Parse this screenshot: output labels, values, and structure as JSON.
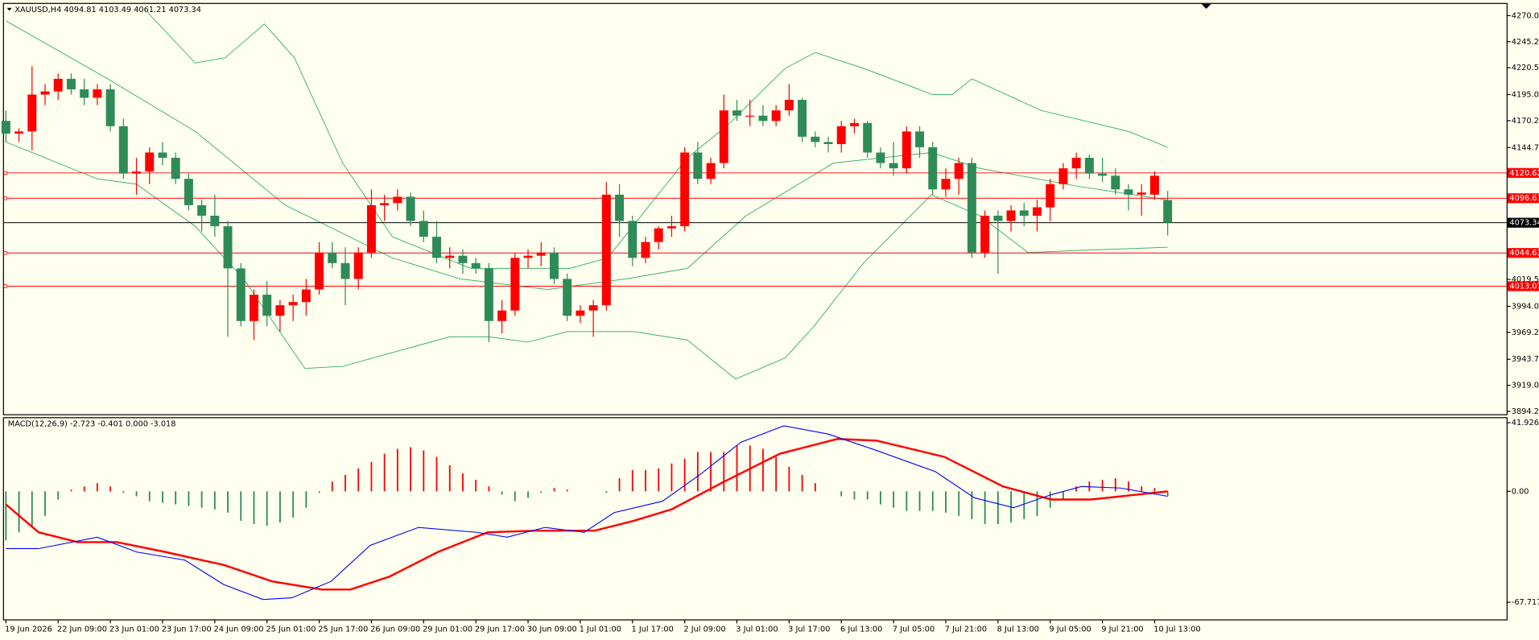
{
  "chart_data": {
    "type": "candlestick",
    "title": "XAUUSD,H4  4094.81 4103.49 4061.21 4073.34",
    "categories": [
      "19 Jun 2026",
      null,
      null,
      null,
      "22 Jun 09:00",
      null,
      null,
      null,
      "23 Jun 01:00",
      null,
      null,
      null,
      "23 Jun 17:00",
      null,
      null,
      null,
      "24 Jun 09:00",
      null,
      null,
      null,
      "25 Jun 01:00",
      null,
      null,
      null,
      "25 Jun 17:00",
      null,
      null,
      null,
      "26 Jun 09:00",
      null,
      null,
      null,
      "29 Jun 01:00",
      null,
      null,
      null,
      "29 Jun 17:00",
      null,
      null,
      null,
      "30 Jun 09:00",
      null,
      null,
      null,
      "1 Jul 01:00",
      null,
      null,
      null,
      "1 Jul 17:00",
      null,
      null,
      null,
      "2 Jul 09:00",
      null,
      null,
      null,
      "3 Jul 01:00",
      null,
      null,
      null,
      "3 Jul 17:00",
      null,
      null,
      null,
      "6 Jul 13:00",
      null,
      null,
      null,
      "7 Jul 05:00",
      null,
      null,
      null,
      "7 Jul 21:00",
      null,
      null,
      null,
      "8 Jul 13:00",
      null,
      null,
      null,
      "9 Jul 05:00",
      null,
      null,
      null,
      "9 Jul 21:00",
      null,
      null,
      null,
      "10 Jul 13:00",
      null
    ],
    "open": [
      4170,
      4158,
      4160,
      4195,
      4198,
      4210,
      4200,
      4192,
      4200,
      4165,
      4120,
      4122,
      4140,
      4135,
      4115,
      4090,
      4080,
      4070,
      4030,
      3980,
      4005,
      3985,
      3995,
      3998,
      4010,
      4045,
      4035,
      4020,
      4045,
      4090,
      4092,
      4098,
      4075,
      4060,
      4040,
      4042,
      4035,
      4030,
      3980,
      3990,
      4040,
      4042,
      4045,
      4020,
      3985,
      3990,
      3995,
      4100,
      4075,
      4040,
      4055,
      4068,
      4070,
      4140,
      4115,
      4130,
      4180,
      4175,
      4175,
      4170,
      4180,
      4190,
      4155,
      4150,
      4148,
      4165,
      4168,
      4140,
      4130,
      4125,
      4160,
      4145,
      4105,
      4115,
      4130,
      4045,
      4080,
      4075,
      4085,
      4080,
      4088,
      4110,
      4125,
      4135,
      4120,
      4118,
      4105,
      4100,
      4100,
      4094.81
    ],
    "high": [
      4180,
      4163,
      4222,
      4205,
      4215,
      4215,
      4210,
      4205,
      4205,
      4172,
      4135,
      4145,
      4150,
      4140,
      4120,
      4095,
      4100,
      4075,
      4035,
      4010,
      4018,
      4000,
      4005,
      4020,
      4055,
      4055,
      4050,
      4050,
      4105,
      4100,
      4105,
      4102,
      4085,
      4075,
      4050,
      4048,
      4040,
      4035,
      4000,
      4045,
      4048,
      4055,
      4050,
      4025,
      3995,
      4000,
      4112,
      4110,
      4080,
      4060,
      4070,
      4080,
      4145,
      4150,
      4135,
      4195,
      4190,
      4190,
      4185,
      4185,
      4205,
      4192,
      4160,
      4155,
      4170,
      4172,
      4170,
      4145,
      4150,
      4165,
      4165,
      4150,
      4125,
      4135,
      4135,
      4085,
      4085,
      4090,
      4092,
      4095,
      4115,
      4130,
      4140,
      4138,
      4135,
      4125,
      4110,
      4110,
      4122,
      4103.49
    ],
    "low": [
      4150,
      4150,
      4142,
      4185,
      4190,
      4195,
      4185,
      4185,
      4160,
      4115,
      4100,
      4110,
      4128,
      4110,
      4085,
      4065,
      4060,
      3965,
      3975,
      3962,
      3975,
      3970,
      3980,
      3985,
      4005,
      4030,
      3995,
      4010,
      4040,
      4075,
      4085,
      4070,
      4055,
      4035,
      4030,
      4025,
      4025,
      3960,
      3968,
      3985,
      4030,
      4032,
      4015,
      3980,
      3978,
      3965,
      3990,
      4060,
      4032,
      4035,
      4048,
      4060,
      4065,
      4110,
      4110,
      4125,
      4170,
      4165,
      4165,
      4165,
      4175,
      4150,
      4145,
      4140,
      4140,
      4158,
      4135,
      4125,
      4118,
      4120,
      4135,
      4100,
      4098,
      4100,
      4040,
      4040,
      4025,
      4065,
      4070,
      4065,
      4075,
      4105,
      4115,
      4115,
      4112,
      4100,
      4085,
      4080,
      4095,
      4061.21
    ],
    "close": [
      4158,
      4160,
      4195,
      4198,
      4210,
      4200,
      4192,
      4200,
      4165,
      4120,
      4122,
      4140,
      4135,
      4115,
      4090,
      4080,
      4070,
      4030,
      3980,
      4005,
      3985,
      3995,
      3998,
      4010,
      4045,
      4035,
      4020,
      4045,
      4090,
      4092,
      4098,
      4075,
      4060,
      4040,
      4042,
      4035,
      4030,
      3980,
      3990,
      4040,
      4042,
      4045,
      4020,
      3985,
      3990,
      3995,
      4100,
      4075,
      4040,
      4055,
      4068,
      4070,
      4140,
      4115,
      4130,
      4180,
      4175,
      4175,
      4170,
      4180,
      4190,
      4155,
      4150,
      4148,
      4165,
      4168,
      4140,
      4130,
      4125,
      4160,
      4145,
      4105,
      4115,
      4130,
      4045,
      4080,
      4075,
      4085,
      4080,
      4088,
      4110,
      4125,
      4135,
      4120,
      4118,
      4105,
      4100,
      4102,
      4118,
      4073.34
    ],
    "up_color": "#ff0000",
    "down_color": "#2e8b57",
    "ylim": [
      3891.5,
      4281.1
    ],
    "yticks": [
      {
        "value": 4270,
        "label": "4270.00"
      },
      {
        "value": 4245.25,
        "label": "4245.25"
      },
      {
        "value": 4220.5,
        "label": "4220.50"
      },
      {
        "value": 4195,
        "label": "4195.00"
      },
      {
        "value": 4170.25,
        "label": "4170.25"
      },
      {
        "value": 4144.75,
        "label": "4144.75"
      },
      {
        "value": 4019.5,
        "label": "4019.50"
      },
      {
        "value": 3994,
        "label": "3994.00"
      },
      {
        "value": 3969.25,
        "label": "3969.25"
      },
      {
        "value": 3943.75,
        "label": "3943.75"
      },
      {
        "value": 3919,
        "label": "3919.00"
      },
      {
        "value": 3894.25,
        "label": "3894.25"
      }
    ],
    "levels": {
      "values": [
        4120.62,
        4096.61,
        4044.63,
        4013.07
      ],
      "color": "#ff0000"
    },
    "last_price": 4073.34,
    "band_color": "#3cb371",
    "bands": [
      {
        "x": [
          10.7,
          14.5,
          16.8,
          19.8,
          22.1,
          25.8,
          29.6,
          35.6,
          43.2,
          46.1,
          52.2,
          55.2,
          59.7,
          62,
          65.7,
          71,
          72.5,
          74,
          79.3,
          86,
          89
        ],
        "values": [
          4275,
          4225,
          4230,
          4262,
          4230,
          4130,
          4060,
          4030,
          4030,
          4040,
          4135,
          4165,
          4220,
          4235,
          4220,
          4195,
          4195,
          4210,
          4180,
          4160,
          4145
        ]
      },
      {
        "x": [
          0,
          7.8,
          14.5,
          21.4,
          29.6,
          34.8,
          41.5,
          47.5,
          52.2,
          56.7,
          63.4,
          70.9,
          74.6,
          82.1,
          89
        ],
        "values": [
          4265,
          4210,
          4160,
          4090,
          4040,
          4020,
          4010,
          4020,
          4030,
          4080,
          4130,
          4140,
          4125,
          4108,
          4095
        ]
      },
      {
        "x": [
          0,
          7,
          10,
          14.5,
          18.2,
          22.9,
          25.8,
          29.6,
          34,
          37,
          40,
          43,
          48.1,
          52.2,
          55.9,
          59.7,
          61.9,
          65.7,
          70.9,
          74.6,
          78.3,
          82.1,
          89
        ],
        "values": [
          4150,
          4115,
          4110,
          4070,
          4020,
          3935,
          3937,
          3950,
          3965,
          3965,
          3960,
          3970,
          3970,
          3962,
          3925,
          3945,
          3975,
          4035,
          4100,
          4080,
          4045,
          4047,
          4050
        ]
      }
    ],
    "macd": {
      "title": "MACD(12,26,9) -2.723 -0.401 0.000 -3.018",
      "histogram": [
        -30,
        -25,
        -22,
        -15,
        -5,
        1,
        3,
        5,
        3,
        -1,
        -3,
        -6,
        -7,
        -8,
        -9,
        -10,
        -11,
        -13,
        -18,
        -20,
        -21,
        -19,
        -16,
        -10,
        -1,
        6,
        10,
        14,
        18,
        23,
        26,
        27,
        25,
        21,
        16,
        11,
        7,
        3,
        -2,
        -6,
        -4,
        -1,
        2,
        1,
        0,
        0,
        -1,
        8,
        13,
        13,
        14,
        17,
        20,
        24,
        24,
        24,
        28,
        28,
        26,
        21,
        15,
        10,
        5,
        0,
        -3,
        -5,
        -5,
        -8,
        -10,
        -12,
        -12,
        -12,
        -13,
        -15,
        -17,
        -20,
        -20,
        -19,
        -17,
        -15,
        -10,
        -5,
        3,
        6,
        7,
        8,
        6,
        3,
        2,
        -2.723
      ],
      "lines": [
        {
          "color": "#ff0000",
          "x": [
            0,
            2.5,
            5.5,
            8.5,
            12.2,
            16.7,
            20.4,
            24.2,
            26.4,
            29.4,
            33.1,
            36.9,
            40.6,
            45.1,
            48.1,
            51,
            54.8,
            59.3,
            63.7,
            66.7,
            71.9,
            76.4,
            80.1,
            83.1,
            89
          ],
          "values": [
            -8,
            -25,
            -31,
            -31,
            -37,
            -45,
            -55,
            -60,
            -60,
            -52,
            -37,
            -25,
            -24,
            -24,
            -18,
            -11,
            5,
            23,
            32,
            31,
            21,
            3,
            -5,
            -5,
            0
          ]
        },
        {
          "color": "#0000ff",
          "x": [
            0,
            2.5,
            7,
            10,
            13.7,
            16.7,
            19.7,
            21.9,
            24.9,
            27.9,
            31.6,
            36.1,
            38.4,
            41.3,
            44.3,
            46.6,
            50.3,
            53.3,
            56.3,
            59.6,
            63,
            66.7,
            71.2,
            74.2,
            77.2,
            80.1,
            82.4,
            85.4,
            89
          ],
          "values": [
            -35,
            -35,
            -28,
            -37,
            -42,
            -57,
            -66,
            -65,
            -55,
            -33,
            -22,
            -25,
            -28,
            -22,
            -25,
            -13,
            -6,
            11,
            30,
            40,
            35,
            25,
            12,
            -4,
            -10,
            -2,
            3,
            2,
            -3
          ]
        }
      ],
      "ylim": [
        -78.2,
        44.7
      ],
      "yticks": [
        41.926,
        {
          "value": 0,
          "label": "0.00"
        },
        -67.717
      ]
    }
  }
}
